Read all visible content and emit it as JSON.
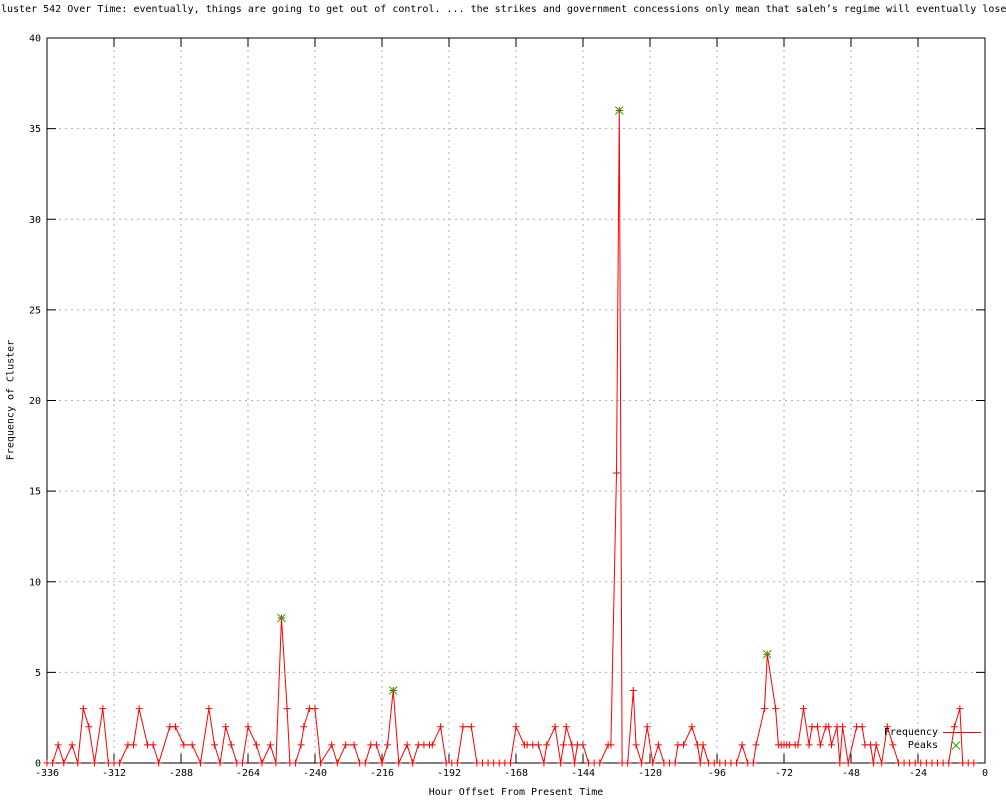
{
  "title": "luster 542 Over Time: eventually, things are going to get out of control. ... the strikes and government concessions only mean that saleh’s regime will eventually lose",
  "legend": {
    "frequency_label": "Frequency",
    "peaks_label": "Peaks"
  },
  "colors": {
    "frequency": "#ff0000",
    "peaks": "#00c000",
    "grid": "#b0b0b0",
    "axis": "#000000",
    "text": "#000000",
    "background": "#ffffff"
  },
  "chart_data": {
    "type": "line",
    "title": "luster 542 Over Time: eventually, things are going to get out of control. ... the strikes and government concessions only mean that saleh’s regime will eventually lose",
    "xlabel": "Hour Offset From Present Time",
    "ylabel": "Frequency of Cluster",
    "xlim": [
      -336,
      0
    ],
    "ylim": [
      0,
      40
    ],
    "x_ticks": [
      -336,
      -312,
      -288,
      -264,
      -240,
      -216,
      -192,
      -168,
      -144,
      -120,
      -96,
      -72,
      -48,
      -24,
      0
    ],
    "y_ticks": [
      0,
      5,
      10,
      15,
      20,
      25,
      30,
      35,
      40
    ],
    "grid": true,
    "legend_position": "inside bottom-right",
    "series": [
      {
        "name": "Frequency",
        "style": "line+markers",
        "marker": "plus",
        "color": "#ff0000",
        "points": [
          [
            -336,
            0
          ],
          [
            -334,
            0
          ],
          [
            -332,
            1
          ],
          [
            -330,
            0
          ],
          [
            -327,
            1
          ],
          [
            -325,
            0
          ],
          [
            -323,
            3
          ],
          [
            -321,
            2
          ],
          [
            -319,
            0
          ],
          [
            -316,
            3
          ],
          [
            -314,
            0
          ],
          [
            -312,
            0
          ],
          [
            -310,
            0
          ],
          [
            -307,
            1
          ],
          [
            -305,
            1
          ],
          [
            -303,
            3
          ],
          [
            -300,
            1
          ],
          [
            -298,
            1
          ],
          [
            -296,
            0
          ],
          [
            -292,
            2
          ],
          [
            -290,
            2
          ],
          [
            -287,
            1
          ],
          [
            -284,
            1
          ],
          [
            -281,
            0
          ],
          [
            -278,
            3
          ],
          [
            -276,
            1
          ],
          [
            -274,
            0
          ],
          [
            -272,
            2
          ],
          [
            -270,
            1
          ],
          [
            -268,
            0
          ],
          [
            -266,
            0
          ],
          [
            -264,
            2
          ],
          [
            -261,
            1
          ],
          [
            -259,
            0
          ],
          [
            -256,
            1
          ],
          [
            -254,
            0
          ],
          [
            -252,
            8
          ],
          [
            -250,
            3
          ],
          [
            -249,
            0
          ],
          [
            -247,
            0
          ],
          [
            -245,
            1
          ],
          [
            -244,
            2
          ],
          [
            -242,
            3
          ],
          [
            -240,
            3
          ],
          [
            -238,
            0
          ],
          [
            -234,
            1
          ],
          [
            -232,
            0
          ],
          [
            -229,
            1
          ],
          [
            -226,
            1
          ],
          [
            -224,
            0
          ],
          [
            -222,
            0
          ],
          [
            -220,
            1
          ],
          [
            -218,
            1
          ],
          [
            -216,
            0
          ],
          [
            -214,
            1
          ],
          [
            -212,
            4
          ],
          [
            -210,
            0
          ],
          [
            -207,
            1
          ],
          [
            -205,
            0
          ],
          [
            -203,
            1
          ],
          [
            -201,
            1
          ],
          [
            -199,
            1
          ],
          [
            -198,
            1
          ],
          [
            -195,
            2
          ],
          [
            -193,
            0
          ],
          [
            -191,
            0
          ],
          [
            -189,
            0
          ],
          [
            -187,
            2
          ],
          [
            -184,
            2
          ],
          [
            -182,
            0
          ],
          [
            -180,
            0
          ],
          [
            -178,
            0
          ],
          [
            -176,
            0
          ],
          [
            -174,
            0
          ],
          [
            -172,
            0
          ],
          [
            -170,
            0
          ],
          [
            -168,
            2
          ],
          [
            -165,
            1
          ],
          [
            -164,
            1
          ],
          [
            -162,
            1
          ],
          [
            -160,
            1
          ],
          [
            -158,
            0
          ],
          [
            -157,
            1
          ],
          [
            -154,
            2
          ],
          [
            -152,
            0
          ],
          [
            -151,
            1
          ],
          [
            -150,
            2
          ],
          [
            -148,
            1
          ],
          [
            -147,
            0
          ],
          [
            -146,
            1
          ],
          [
            -144,
            1
          ],
          [
            -142,
            0
          ],
          [
            -140,
            0
          ],
          [
            -138,
            0
          ],
          [
            -135,
            1
          ],
          [
            -134,
            1
          ],
          [
            -132,
            16
          ],
          [
            -131,
            36
          ],
          [
            -130,
            0
          ],
          [
            -128,
            0
          ],
          [
            -126,
            4
          ],
          [
            -125,
            1
          ],
          [
            -123,
            0
          ],
          [
            -121,
            2
          ],
          [
            -119,
            0
          ],
          [
            -117,
            1
          ],
          [
            -115,
            0
          ],
          [
            -113,
            0
          ],
          [
            -111,
            0
          ],
          [
            -110,
            1
          ],
          [
            -108,
            1
          ],
          [
            -105,
            2
          ],
          [
            -103,
            1
          ],
          [
            -102,
            0
          ],
          [
            -101,
            1
          ],
          [
            -99,
            0
          ],
          [
            -97,
            0
          ],
          [
            -95,
            0
          ],
          [
            -93,
            0
          ],
          [
            -91,
            0
          ],
          [
            -89,
            0
          ],
          [
            -87,
            1
          ],
          [
            -85,
            0
          ],
          [
            -83,
            0
          ],
          [
            -82,
            1
          ],
          [
            -79,
            3
          ],
          [
            -78,
            6
          ],
          [
            -75,
            3
          ],
          [
            -74,
            1
          ],
          [
            -73,
            1
          ],
          [
            -72,
            1
          ],
          [
            -71,
            1
          ],
          [
            -70,
            1
          ],
          [
            -68,
            1
          ],
          [
            -67,
            1
          ],
          [
            -65,
            3
          ],
          [
            -63,
            1
          ],
          [
            -62,
            2
          ],
          [
            -60,
            2
          ],
          [
            -59,
            1
          ],
          [
            -57,
            2
          ],
          [
            -56,
            2
          ],
          [
            -55,
            1
          ],
          [
            -53,
            2
          ],
          [
            -52,
            0
          ],
          [
            -51,
            2
          ],
          [
            -49,
            0
          ],
          [
            -46,
            2
          ],
          [
            -44,
            2
          ],
          [
            -43,
            1
          ],
          [
            -41,
            1
          ],
          [
            -40,
            0
          ],
          [
            -39,
            1
          ],
          [
            -37,
            0
          ],
          [
            -35,
            2
          ],
          [
            -33,
            1
          ],
          [
            -31,
            0
          ],
          [
            -29,
            0
          ],
          [
            -27,
            0
          ],
          [
            -25,
            0
          ],
          [
            -23,
            0
          ],
          [
            -21,
            0
          ],
          [
            -19,
            0
          ],
          [
            -17,
            0
          ],
          [
            -15,
            0
          ],
          [
            -13,
            0
          ],
          [
            -11,
            2
          ],
          [
            -9,
            3
          ],
          [
            -8,
            0
          ],
          [
            -6,
            0
          ],
          [
            -4,
            0
          ]
        ]
      },
      {
        "name": "Peaks",
        "style": "markers",
        "marker": "cross",
        "color": "#00c000",
        "points": [
          [
            -252,
            8
          ],
          [
            -212,
            4
          ],
          [
            -131,
            36
          ],
          [
            -78,
            6
          ]
        ]
      }
    ]
  }
}
